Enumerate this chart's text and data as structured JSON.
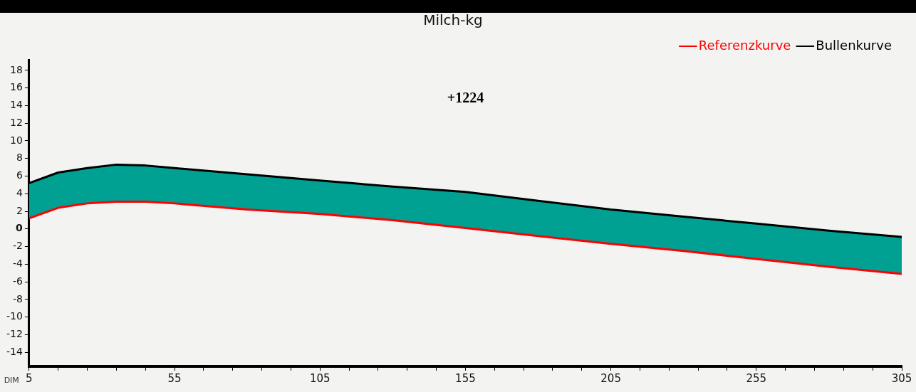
{
  "chart_data": {
    "type": "line",
    "title": "Milch-kg",
    "xlabel": "DIM",
    "annotations": [
      "+1224"
    ],
    "x": [
      5,
      15,
      25,
      35,
      45,
      55,
      80,
      105,
      130,
      155,
      180,
      205,
      230,
      255,
      280,
      305
    ],
    "series": [
      {
        "name": "Referenzkurve",
        "color": "#ff0000",
        "values": [
          1.2,
          2.4,
          2.9,
          3.1,
          3.1,
          2.9,
          2.2,
          1.7,
          1.0,
          0.1,
          -0.8,
          -1.7,
          -2.5,
          -3.4,
          -4.3,
          -5.1
        ]
      },
      {
        "name": "Bullenkurve",
        "color": "#000000",
        "values": [
          5.2,
          6.4,
          6.9,
          7.3,
          7.2,
          6.9,
          6.2,
          5.5,
          4.8,
          4.2,
          3.2,
          2.2,
          1.4,
          0.6,
          -0.2,
          -0.9
        ],
        "lower": [
          1.2,
          2.4,
          2.9,
          3.1,
          3.1,
          2.9,
          2.2,
          1.7,
          1.0,
          0.1,
          -0.8,
          -1.7,
          -2.5,
          -3.4,
          -4.3,
          -5.1
        ],
        "upper": [
          5.2,
          6.4,
          6.9,
          7.3,
          7.2,
          6.9,
          6.2,
          5.5,
          4.8,
          4.2,
          3.2,
          2.2,
          1.4,
          0.6,
          -0.2,
          -0.9
        ]
      }
    ],
    "xlim": [
      5,
      305
    ],
    "xticks": [
      5,
      {
        "value": 15,
        "label": null
      },
      {
        "value": 25,
        "label": null
      },
      {
        "value": 35,
        "label": null
      },
      {
        "value": 45,
        "label": null
      },
      55,
      {
        "value": 65,
        "label": null
      },
      {
        "value": 75,
        "label": null
      },
      {
        "value": 85,
        "label": null
      },
      {
        "value": 95,
        "label": null
      },
      105,
      {
        "value": 115,
        "label": null
      },
      {
        "value": 125,
        "label": null
      },
      {
        "value": 135,
        "label": null
      },
      {
        "value": 145,
        "label": null
      },
      155,
      {
        "value": 165,
        "label": null
      },
      {
        "value": 175,
        "label": null
      },
      {
        "value": 185,
        "label": null
      },
      {
        "value": 195,
        "label": null
      },
      205,
      {
        "value": 215,
        "label": null
      },
      {
        "value": 225,
        "label": null
      },
      {
        "value": 235,
        "label": null
      },
      {
        "value": 245,
        "label": null
      },
      255,
      {
        "value": 265,
        "label": null
      },
      {
        "value": 275,
        "label": null
      },
      {
        "value": 285,
        "label": null
      },
      {
        "value": 295,
        "label": null
      },
      305
    ],
    "ylim": [
      -15.6,
      19.2
    ],
    "yticks": [
      -14,
      -12,
      -10,
      -8,
      -6,
      -4,
      -2,
      0,
      2,
      4,
      6,
      8,
      10,
      12,
      14,
      16,
      18
    ],
    "grid": false,
    "legend": "top right",
    "marker": "none",
    "line_style": "solid"
  }
}
